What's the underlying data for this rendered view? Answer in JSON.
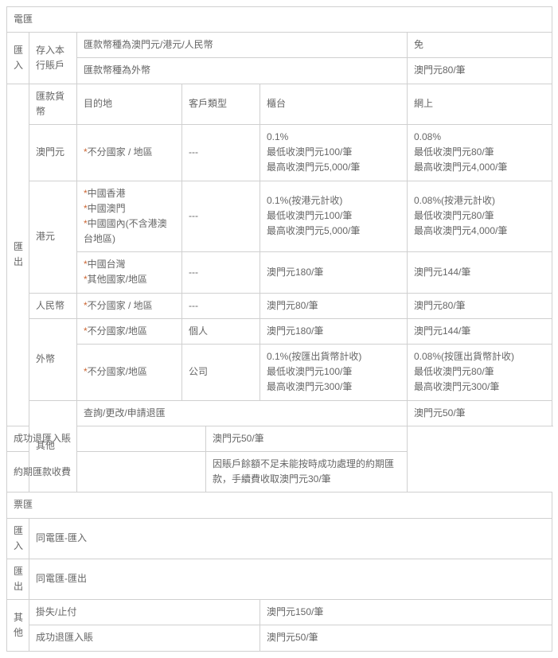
{
  "sectionA": {
    "title": "電匯",
    "inward": {
      "label": "匯入",
      "deposit": "存入本行賬戶",
      "row1currency": "匯款幣種為澳門元/港元/人民幣",
      "row1fee": "免",
      "row2currency": "匯款幣種為外幣",
      "row2fee": "澳門元80/筆"
    },
    "outward": {
      "label": "匯出",
      "headers": {
        "currency": "匯款貨幣",
        "destination": "目的地",
        "customerType": "客戶類型",
        "counter": "櫃台",
        "online": "網上"
      },
      "rows": [
        {
          "currency": "澳門元",
          "dest": "不分國家 / 地區",
          "ctype": "---",
          "counter": "0.1%\n最低收澳門元100/筆\n最高收澳門元5,000/筆",
          "online": "0.08%\n最低收澳門元80/筆\n最高收澳門元4,000/筆"
        },
        {
          "currency": "港元",
          "dests": [
            "中國香港\n中國澳門\n中國國內(不含港澳台地區)",
            "中國台灣\n其他國家/地區"
          ],
          "ctype": "---",
          "counter1": "0.1%(按港元計收)\n最低收澳門元100/筆\n最高收澳門元5,000/筆",
          "online1": "0.08%(按港元計收)\n最低收澳門元80/筆\n最高收澳門元4,000/筆",
          "counter2": "澳門元180/筆",
          "online2": "澳門元144/筆"
        },
        {
          "currency": "人民幣",
          "dest": "不分國家 / 地區",
          "ctype": "---",
          "counter": "澳門元80/筆",
          "online": "澳門元80/筆"
        },
        {
          "currency": "外幣",
          "dest": "不分國家/地區",
          "ctype1": "個人",
          "counter1": "澳門元180/筆",
          "online1": "澳門元144/筆",
          "ctype2": "公司",
          "counter2": "0.1%(按匯出貨幣計收)\n最低收澳門元100/筆\n最高收澳門元300/筆",
          "online2": "0.08%(按匯出貨幣計收)\n最低收澳門元80/筆\n最高收澳門元300/筆"
        }
      ]
    },
    "other": {
      "label": "其他",
      "items": [
        {
          "name": "查詢/更改/申請退匯",
          "fee": "澳門元50/筆"
        },
        {
          "name": "成功退匯入賬",
          "fee": "澳門元50/筆"
        },
        {
          "name": "約期匯款收費",
          "fee": "因賬戶餘額不足未能按時成功處理的約期匯款，手續費收取澳門元30/筆"
        }
      ]
    }
  },
  "sectionB": {
    "title": "票匯",
    "inward": {
      "label": "匯入",
      "text": "同電匯-匯入"
    },
    "outward": {
      "label": "匯出",
      "text": "同電匯-匯出"
    },
    "other": {
      "label": "其他",
      "items": [
        {
          "name": "掛失/止付",
          "fee": "澳門元150/筆"
        },
        {
          "name": "成功退匯入賬",
          "fee": "澳門元50/筆"
        }
      ]
    }
  },
  "style": {
    "headerColor": "#666666",
    "asteriskColor": "#cc6633",
    "borderColor": "#d0d0d0",
    "fontSize": 12
  }
}
